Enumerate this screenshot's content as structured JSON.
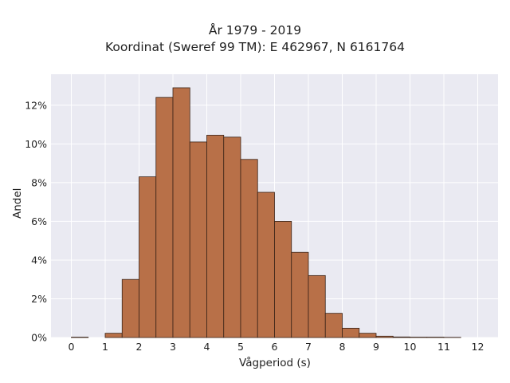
{
  "chart_data": {
    "type": "bar",
    "title": "År 1979 - 2019",
    "subtitle": "Koordinat (Sweref 99 TM): E 462967, N 6161764",
    "xlabel": "Vågperiod (s)",
    "ylabel": "Andel",
    "x_ticks": [
      "0",
      "1",
      "2",
      "3",
      "4",
      "5",
      "6",
      "7",
      "8",
      "9",
      "10",
      "11",
      "12"
    ],
    "y_ticks": [
      "0%",
      "2%",
      "4%",
      "6%",
      "8%",
      "10%",
      "12%"
    ],
    "xlim": [
      -0.6,
      12.6
    ],
    "ylim": [
      0,
      13.6
    ],
    "bin_width": 0.5,
    "bins": [
      {
        "x0": 0.0,
        "value": 0.02
      },
      {
        "x0": 0.5,
        "value": 0.0
      },
      {
        "x0": 1.0,
        "value": 0.22
      },
      {
        "x0": 1.5,
        "value": 3.0
      },
      {
        "x0": 2.0,
        "value": 8.3
      },
      {
        "x0": 2.5,
        "value": 12.4
      },
      {
        "x0": 3.0,
        "value": 12.9
      },
      {
        "x0": 3.5,
        "value": 10.1
      },
      {
        "x0": 4.0,
        "value": 10.45
      },
      {
        "x0": 4.5,
        "value": 10.35
      },
      {
        "x0": 5.0,
        "value": 9.2
      },
      {
        "x0": 5.5,
        "value": 7.5
      },
      {
        "x0": 6.0,
        "value": 6.0
      },
      {
        "x0": 6.5,
        "value": 4.4
      },
      {
        "x0": 7.0,
        "value": 3.2
      },
      {
        "x0": 7.5,
        "value": 1.25
      },
      {
        "x0": 8.0,
        "value": 0.48
      },
      {
        "x0": 8.5,
        "value": 0.22
      },
      {
        "x0": 9.0,
        "value": 0.07
      },
      {
        "x0": 9.5,
        "value": 0.03
      },
      {
        "x0": 10.0,
        "value": 0.02
      },
      {
        "x0": 10.5,
        "value": 0.02
      },
      {
        "x0": 11.0,
        "value": 0.01
      }
    ],
    "grid": true,
    "colors": {
      "bar": "#b87048",
      "bar_edge": "#3a2418",
      "plot_bg": "#eaeaf2",
      "grid": "#ffffff"
    }
  }
}
